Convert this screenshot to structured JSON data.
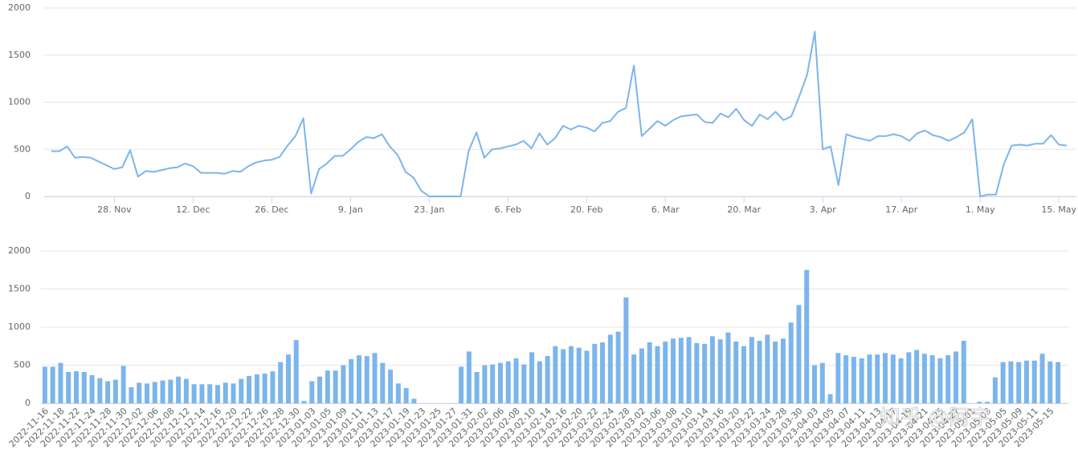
{
  "chart_data": [
    {
      "type": "line",
      "color": "#7cb5ec",
      "grid": true,
      "xlim": [
        0,
        129
      ],
      "xticks": [
        {
          "value": 8,
          "label": "28. Nov"
        },
        {
          "value": 18,
          "label": "12. Dec"
        },
        {
          "value": 28,
          "label": "26. Dec"
        },
        {
          "value": 38,
          "label": "9. Jan"
        },
        {
          "value": 48,
          "label": "23. Jan"
        },
        {
          "value": 58,
          "label": "6. Feb"
        },
        {
          "value": 68,
          "label": "20. Feb"
        },
        {
          "value": 78,
          "label": "6. Mar"
        },
        {
          "value": 88,
          "label": "20. Mar"
        },
        {
          "value": 98,
          "label": "3. Apr"
        },
        {
          "value": 108,
          "label": "17. Apr"
        },
        {
          "value": 118,
          "label": "1. May"
        },
        {
          "value": 128,
          "label": "15. May"
        }
      ],
      "ylim": [
        0,
        2000
      ],
      "yticks": [
        0,
        500,
        1000,
        1500,
        2000
      ],
      "values": [
        480,
        480,
        530,
        410,
        420,
        410,
        370,
        330,
        290,
        310,
        490,
        210,
        270,
        260,
        280,
        300,
        310,
        350,
        320,
        250,
        250,
        250,
        240,
        270,
        260,
        320,
        360,
        380,
        390,
        420,
        540,
        640,
        830,
        30,
        290,
        350,
        430,
        430,
        500,
        580,
        630,
        620,
        660,
        530,
        440,
        260,
        200,
        60,
        0,
        0,
        0,
        0,
        0,
        480,
        680,
        410,
        500,
        510,
        530,
        550,
        590,
        510,
        670,
        550,
        620,
        750,
        710,
        750,
        730,
        690,
        780,
        800,
        900,
        940,
        1390,
        640,
        720,
        800,
        750,
        810,
        850,
        860,
        870,
        790,
        780,
        880,
        840,
        930,
        810,
        750,
        870,
        820,
        900,
        810,
        850,
        1060,
        1290,
        1750,
        500,
        530,
        120,
        660,
        630,
        610,
        590,
        640,
        640,
        660,
        640,
        590,
        670,
        700,
        650,
        630,
        590,
        630,
        680,
        820,
        0,
        20,
        20,
        340,
        540,
        550,
        540,
        560,
        560,
        650,
        550,
        540
      ]
    },
    {
      "type": "bar",
      "color": "#7cb5ec",
      "grid": true,
      "ylim": [
        0,
        2000
      ],
      "yticks": [
        0,
        500,
        1000,
        1500,
        2000
      ],
      "categories": [
        "2022-11-16",
        null,
        "2022-11-18",
        null,
        "2022-11-22",
        null,
        "2022-11-24",
        null,
        "2022-11-28",
        null,
        "2022-11-30",
        null,
        "2022-12-02",
        null,
        "2022-12-06",
        null,
        "2022-12-08",
        null,
        "2022-12-12",
        null,
        "2022-12-14",
        null,
        "2022-12-16",
        null,
        "2022-12-20",
        null,
        "2022-12-22",
        null,
        "2022-12-26",
        null,
        "2022-12-28",
        null,
        "2022-12-30",
        null,
        "2023-01-03",
        null,
        "2023-01-05",
        null,
        "2023-01-09",
        null,
        "2023-01-11",
        null,
        "2023-01-13",
        null,
        "2023-01-17",
        null,
        "2023-01-19",
        null,
        "2023-01-23",
        null,
        "2023-01-25",
        null,
        "2023-01-27",
        null,
        "2023-01-31",
        null,
        "2023-02-02",
        null,
        "2023-02-06",
        null,
        "2023-02-08",
        null,
        "2023-02-10",
        null,
        "2023-02-14",
        null,
        "2023-02-16",
        null,
        "2023-02-20",
        null,
        "2023-02-22",
        null,
        "2023-02-24",
        null,
        "2023-02-28",
        null,
        "2023-03-02",
        null,
        "2023-03-06",
        null,
        "2023-03-08",
        null,
        "2023-03-10",
        null,
        "2023-03-14",
        null,
        "2023-03-16",
        null,
        "2023-03-20",
        null,
        "2023-03-22",
        null,
        "2023-03-24",
        null,
        "2023-03-28",
        null,
        "2023-03-30",
        null,
        "2023-04-03",
        null,
        "2023-04-05",
        null,
        "2023-04-07",
        null,
        "2023-04-11",
        null,
        "2023-04-13",
        null,
        "2023-04-17",
        null,
        "2023-04-19",
        null,
        "2023-04-21",
        null,
        "2023-04-25",
        null,
        "2023-04-27",
        null,
        "2023-05-01",
        null,
        "2023-05-03",
        null,
        "2023-05-05",
        null,
        "2023-05-09",
        null,
        "2023-05-11",
        null,
        "2023-05-15",
        null
      ],
      "values": [
        480,
        480,
        530,
        410,
        420,
        410,
        370,
        330,
        290,
        310,
        490,
        210,
        270,
        260,
        280,
        300,
        310,
        350,
        320,
        250,
        250,
        250,
        240,
        270,
        260,
        320,
        360,
        380,
        390,
        420,
        540,
        640,
        830,
        30,
        290,
        350,
        430,
        430,
        500,
        580,
        630,
        620,
        660,
        530,
        440,
        260,
        200,
        60,
        0,
        0,
        0,
        0,
        0,
        480,
        680,
        410,
        500,
        510,
        530,
        550,
        590,
        510,
        670,
        550,
        620,
        750,
        710,
        750,
        730,
        690,
        780,
        800,
        900,
        940,
        1390,
        640,
        720,
        800,
        750,
        810,
        850,
        860,
        870,
        790,
        780,
        880,
        840,
        930,
        810,
        750,
        870,
        820,
        900,
        810,
        850,
        1060,
        1290,
        1750,
        500,
        530,
        120,
        660,
        630,
        610,
        590,
        640,
        640,
        660,
        640,
        590,
        670,
        700,
        650,
        630,
        590,
        630,
        680,
        820,
        0,
        20,
        20,
        340,
        540,
        550,
        540,
        560,
        560,
        650,
        550,
        540
      ],
      "watermark": "知乎 @阿宇"
    }
  ]
}
